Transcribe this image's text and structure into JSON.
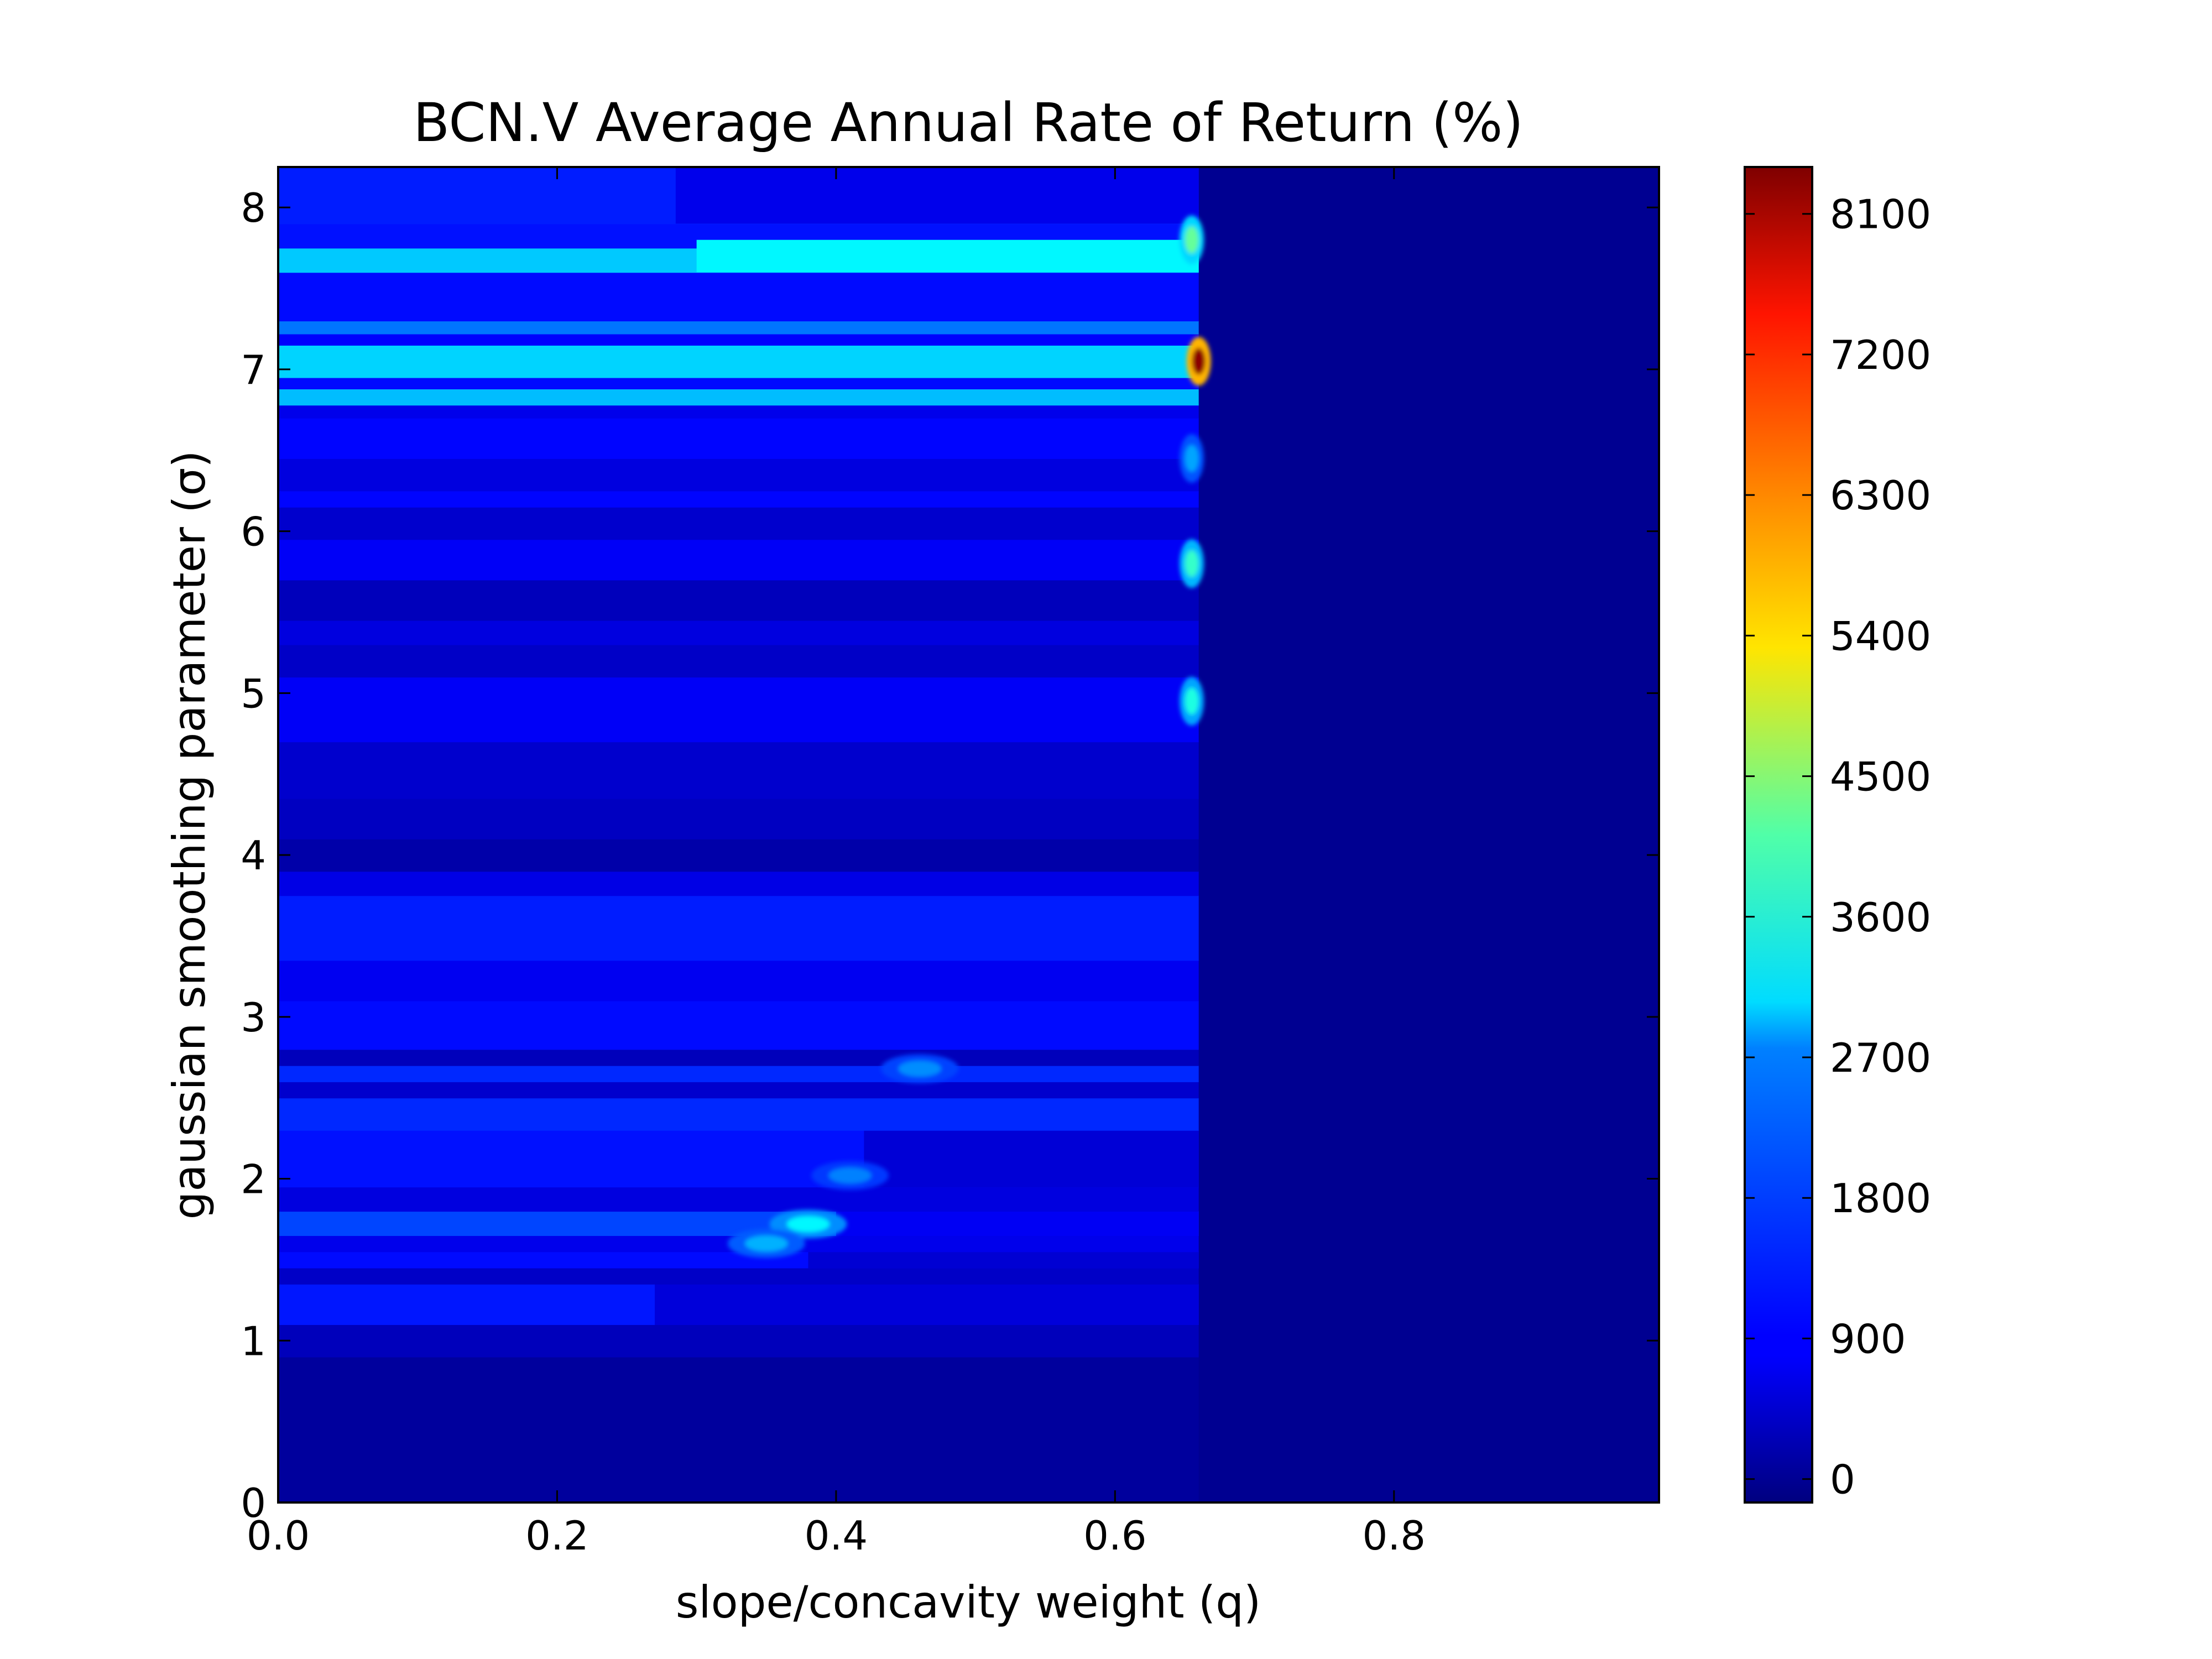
{
  "chart_data": {
    "type": "heatmap",
    "title": "BCN.V Average Annual Rate of Return (%)",
    "xlabel": "slope/concavity weight (q)",
    "ylabel": "gaussian smoothing parameter (σ)",
    "xlim": [
      0.0,
      0.99
    ],
    "ylim": [
      0,
      8.25
    ],
    "x_ticks": [
      0.0,
      0.2,
      0.4,
      0.6,
      0.8
    ],
    "x_tick_labels": [
      "0.0",
      "0.2",
      "0.4",
      "0.6",
      "0.8"
    ],
    "y_ticks": [
      0,
      1,
      2,
      3,
      4,
      5,
      6,
      7,
      8
    ],
    "y_tick_labels": [
      "0",
      "1",
      "2",
      "3",
      "4",
      "5",
      "6",
      "7",
      "8"
    ],
    "colorbar": {
      "colormap": "jet",
      "range": [
        -150,
        8400
      ],
      "ticks": [
        0,
        900,
        1800,
        2700,
        3600,
        4500,
        5400,
        6300,
        7200,
        8100
      ],
      "tick_labels": [
        "0",
        "900",
        "1800",
        "2700",
        "3600",
        "4500",
        "5400",
        "6300",
        "7200",
        "8100"
      ]
    },
    "q_cutoff": 0.66,
    "right_region_value": 0,
    "bands": [
      {
        "y0": 0.0,
        "y1": 0.9,
        "value": 100
      },
      {
        "y0": 0.9,
        "y1": 1.1,
        "value": 350
      },
      {
        "y0": 1.1,
        "y1": 1.35,
        "value": 1100,
        "q_end": 0.27
      },
      {
        "y0": 1.35,
        "y1": 1.45,
        "value": 450
      },
      {
        "y0": 1.45,
        "y1": 1.55,
        "value": 1000,
        "q_end": 0.38
      },
      {
        "y0": 1.55,
        "y1": 1.65,
        "value": 750
      },
      {
        "y0": 1.65,
        "y1": 1.8,
        "value": 1500,
        "q_end": 0.4
      },
      {
        "y0": 1.8,
        "y1": 1.95,
        "value": 650
      },
      {
        "y0": 1.95,
        "y1": 2.3,
        "value": 1050,
        "q_end": 0.42
      },
      {
        "y0": 2.3,
        "y1": 2.5,
        "value": 1250
      },
      {
        "y0": 2.5,
        "y1": 2.6,
        "value": 500
      },
      {
        "y0": 2.6,
        "y1": 2.7,
        "value": 1250
      },
      {
        "y0": 2.7,
        "y1": 2.8,
        "value": 350
      },
      {
        "y0": 2.8,
        "y1": 3.1,
        "value": 1000
      },
      {
        "y0": 3.1,
        "y1": 3.35,
        "value": 800
      },
      {
        "y0": 3.35,
        "y1": 3.75,
        "value": 1150
      },
      {
        "y0": 3.75,
        "y1": 3.9,
        "value": 700
      },
      {
        "y0": 3.9,
        "y1": 4.1,
        "value": 200
      },
      {
        "y0": 4.1,
        "y1": 4.35,
        "value": 400
      },
      {
        "y0": 4.35,
        "y1": 4.7,
        "value": 500
      },
      {
        "y0": 4.7,
        "y1": 5.1,
        "value": 850
      },
      {
        "y0": 5.1,
        "y1": 5.3,
        "value": 450
      },
      {
        "y0": 5.3,
        "y1": 5.45,
        "value": 650
      },
      {
        "y0": 5.45,
        "y1": 5.7,
        "value": 350
      },
      {
        "y0": 5.7,
        "y1": 5.95,
        "value": 850
      },
      {
        "y0": 5.95,
        "y1": 6.15,
        "value": 500
      },
      {
        "y0": 6.15,
        "y1": 6.25,
        "value": 950
      },
      {
        "y0": 6.25,
        "y1": 6.45,
        "value": 650
      },
      {
        "y0": 6.45,
        "y1": 6.7,
        "value": 950
      },
      {
        "y0": 6.7,
        "y1": 6.78,
        "value": 750
      },
      {
        "y0": 6.78,
        "y1": 6.88,
        "value": 2500
      },
      {
        "y0": 6.88,
        "y1": 6.95,
        "value": 1000
      },
      {
        "y0": 6.95,
        "y1": 7.15,
        "value": 2700
      },
      {
        "y0": 7.15,
        "y1": 7.22,
        "value": 900
      },
      {
        "y0": 7.22,
        "y1": 7.3,
        "value": 1900
      },
      {
        "y0": 7.3,
        "y1": 7.6,
        "value": 1000
      },
      {
        "y0": 7.6,
        "y1": 7.75,
        "value": 2600
      },
      {
        "y0": 7.75,
        "y1": 7.9,
        "value": 1050
      },
      {
        "y0": 7.9,
        "y1": 8.25,
        "value": 1150
      }
    ],
    "overrides": [
      {
        "x0": 0.285,
        "x1": 0.66,
        "y0": 7.9,
        "y1": 8.25,
        "value": 750
      },
      {
        "x0": 0.3,
        "x1": 0.66,
        "y0": 7.6,
        "y1": 7.8,
        "value": 3000
      }
    ],
    "hotspots": [
      {
        "q": 0.66,
        "sigma": 7.05,
        "value": 8300
      },
      {
        "q": 0.655,
        "sigma": 7.8,
        "value": 3900
      },
      {
        "q": 0.655,
        "sigma": 5.8,
        "value": 3500
      },
      {
        "q": 0.655,
        "sigma": 4.95,
        "value": 3300
      },
      {
        "q": 0.655,
        "sigma": 6.45,
        "value": 2300
      },
      {
        "q": 0.38,
        "sigma": 1.72,
        "value": 3000
      },
      {
        "q": 0.35,
        "sigma": 1.6,
        "value": 2400
      },
      {
        "q": 0.41,
        "sigma": 2.02,
        "value": 2000
      },
      {
        "q": 0.46,
        "sigma": 2.68,
        "value": 2100
      }
    ]
  }
}
